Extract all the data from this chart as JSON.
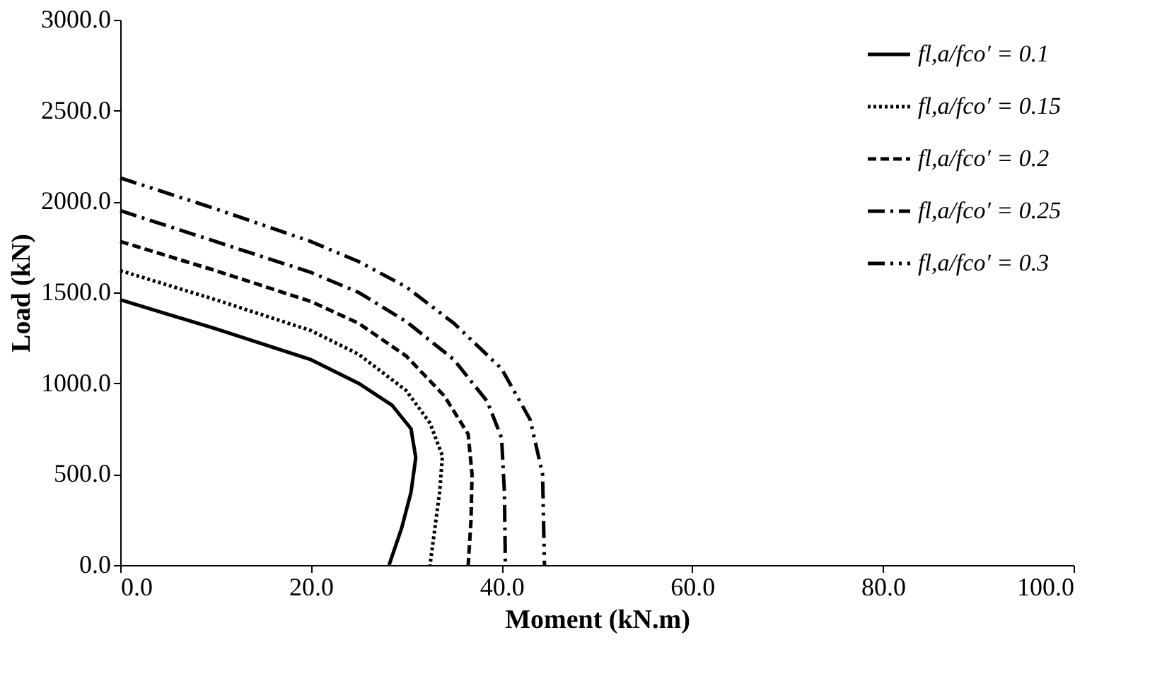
{
  "chart_data": {
    "type": "line",
    "xlabel": "Moment (kN.m)",
    "ylabel": "Load (kN)",
    "xlim": [
      0,
      100
    ],
    "xticks": [
      {
        "value": 0,
        "label": "0.0"
      },
      {
        "value": 20,
        "label": "20.0"
      },
      {
        "value": 40,
        "label": "40.0"
      },
      {
        "value": 60,
        "label": "60.0"
      },
      {
        "value": 80,
        "label": "80.0"
      },
      {
        "value": 100,
        "label": "100.0"
      }
    ],
    "ylim": [
      0,
      3000
    ],
    "yticks": [
      {
        "value": 0,
        "label": "0.0"
      },
      {
        "value": 500,
        "label": "500.0"
      },
      {
        "value": 1000,
        "label": "1000.0"
      },
      {
        "value": 1500,
        "label": "1500.0"
      },
      {
        "value": 2000,
        "label": "2000.0"
      },
      {
        "value": 2500,
        "label": "2500.0"
      },
      {
        "value": 3000,
        "label": "3000.0"
      }
    ],
    "grid": false,
    "legend": "top right",
    "marker": "none",
    "series": [
      {
        "name": "fl,a/fco′ = 0.1",
        "color": "#000000",
        "line_style": "solid",
        "x": [
          0,
          10,
          20,
          25,
          28.5,
          30.5,
          31,
          30.5,
          29.5,
          28.2
        ],
        "values": [
          1460,
          1300,
          1130,
          1000,
          880,
          750,
          590,
          400,
          200,
          0
        ]
      },
      {
        "name": "fl,a/fco′ = 0.15",
        "color": "#000000",
        "line_style": "dotted",
        "x": [
          0,
          10,
          20,
          25,
          30,
          32.5,
          33.8,
          33.5,
          33,
          32.5
        ],
        "values": [
          1620,
          1460,
          1290,
          1160,
          960,
          780,
          600,
          400,
          200,
          0
        ]
      },
      {
        "name": "fl,a/fco′ = 0.2",
        "color": "#000000",
        "line_style": "dashed",
        "x": [
          0,
          10,
          20,
          25,
          30,
          34,
          36.5,
          36.9,
          36.8,
          36.5
        ],
        "values": [
          1780,
          1620,
          1450,
          1330,
          1150,
          930,
          720,
          500,
          250,
          0
        ]
      },
      {
        "name": "fl,a/fco′ = 0.25",
        "color": "#000000",
        "line_style": "dashdot",
        "x": [
          0,
          10,
          20,
          25,
          30,
          35,
          38.5,
          40,
          40.3,
          40.4
        ],
        "values": [
          1950,
          1780,
          1610,
          1500,
          1340,
          1130,
          900,
          700,
          400,
          0
        ]
      },
      {
        "name": "fl,a/fco′ = 0.3",
        "color": "#000000",
        "line_style": "dashdotdot",
        "x": [
          0,
          10,
          20,
          25,
          30,
          35,
          40,
          43,
          44.3,
          44.5
        ],
        "values": [
          2130,
          1960,
          1780,
          1670,
          1530,
          1330,
          1080,
          800,
          500,
          0
        ]
      }
    ]
  }
}
